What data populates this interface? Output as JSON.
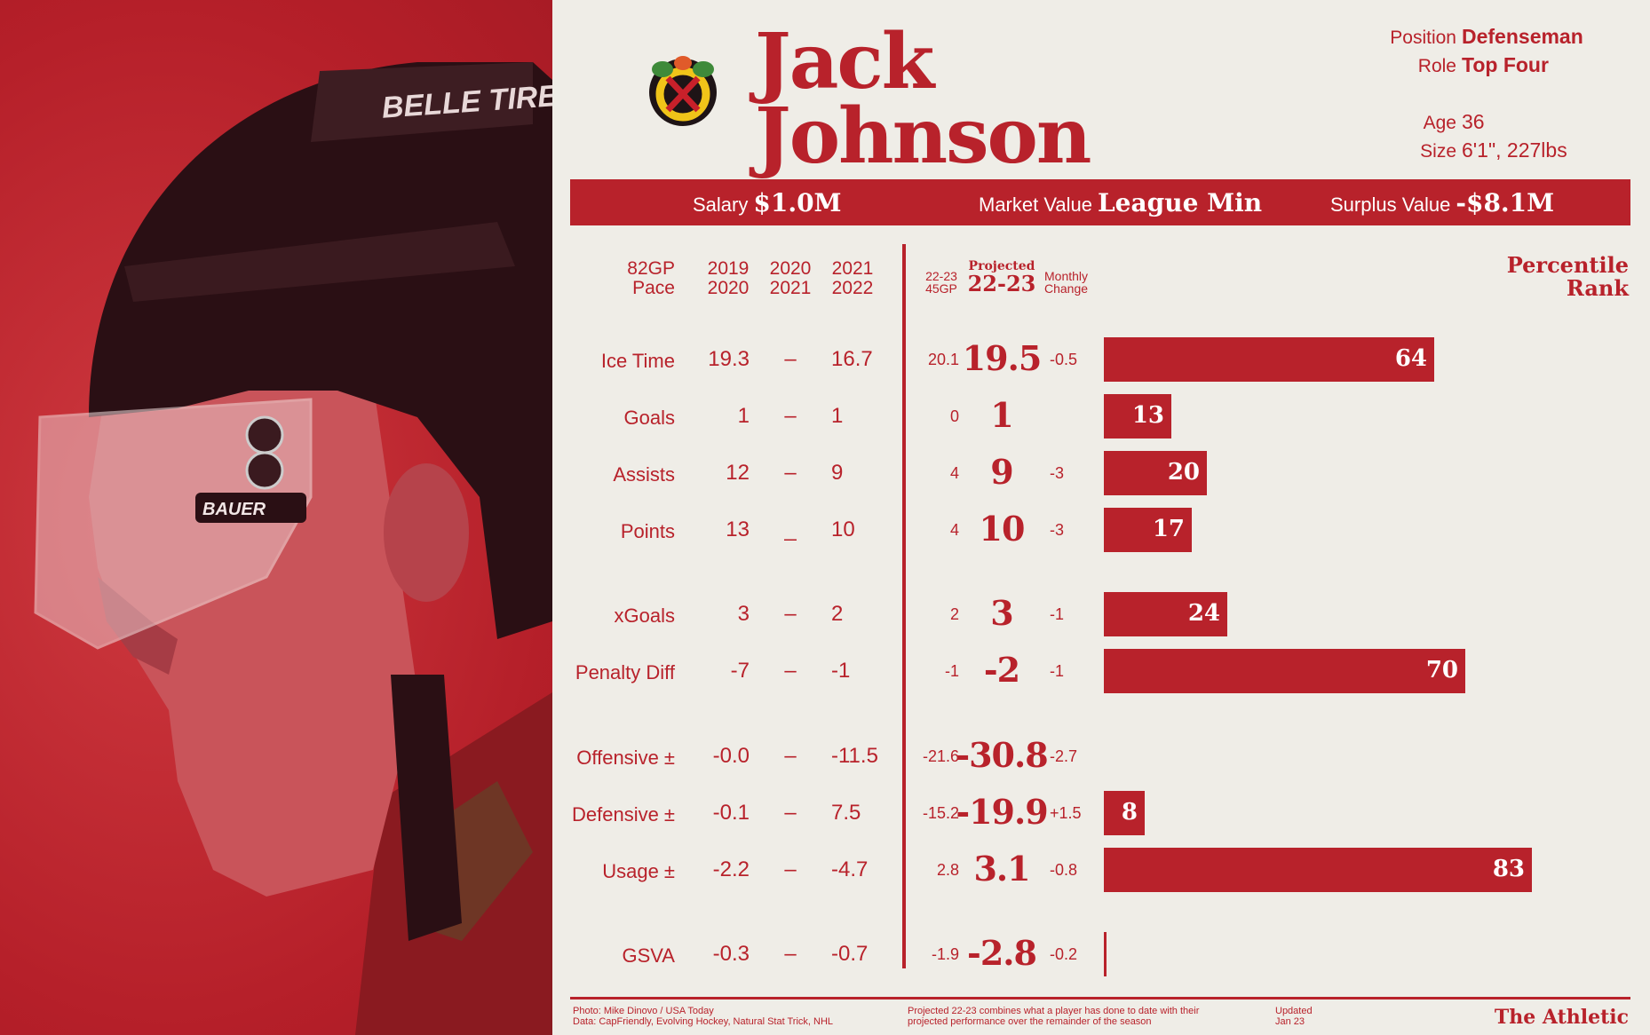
{
  "player": {
    "first": "Jack",
    "last": "Johnson"
  },
  "info": {
    "position_label": "Position",
    "position": "Defenseman",
    "role_label": "Role",
    "role": "Top Four",
    "age_label": "Age",
    "age": "36",
    "size_label": "Size",
    "size": "6'1\", 227lbs"
  },
  "banner": {
    "salary_label": "Salary",
    "salary": "$1.0M",
    "market_label": "Market Value",
    "market": "League Min",
    "surplus_label": "Surplus Value",
    "surplus": "-$8.1M"
  },
  "headers": {
    "pace": [
      "82GP",
      "Pace"
    ],
    "s1": [
      "2019",
      "2020"
    ],
    "s2": [
      "2020",
      "2021"
    ],
    "s3": [
      "2021",
      "2022"
    ],
    "cur": [
      "22-23",
      "45GP"
    ],
    "proj": [
      "Projected",
      "22-23"
    ],
    "chg": [
      "Monthly",
      "Change"
    ],
    "pct": [
      "Percentile",
      "Rank"
    ]
  },
  "colors": {
    "accent": "#b8222b",
    "background": "#efede7"
  },
  "chart_data": {
    "type": "bar",
    "title": "Percentile Rank",
    "categories": [
      "Ice Time",
      "Goals",
      "Assists",
      "Points",
      "xGoals",
      "Penalty Diff",
      "Offensive ±",
      "Defensive ±",
      "Usage ±",
      "GSVA"
    ],
    "values": [
      64,
      13,
      20,
      17,
      24,
      70,
      null,
      8,
      83,
      0
    ],
    "xlim": [
      0,
      100
    ]
  },
  "rows": [
    {
      "label": "Ice Time",
      "s1": "19.3",
      "s2": "–",
      "s3": "16.7",
      "cur": "20.1",
      "proj": "19.5",
      "chg": "-0.5",
      "pct": "64"
    },
    {
      "label": "Goals",
      "s1": "1",
      "s2": "–",
      "s3": "1",
      "cur": "0",
      "proj": "1",
      "chg": "",
      "pct": "13"
    },
    {
      "label": "Assists",
      "s1": "12",
      "s2": "–",
      "s3": "9",
      "cur": "4",
      "proj": "9",
      "chg": "-3",
      "pct": "20"
    },
    {
      "label": "Points",
      "s1": "13",
      "s2": "_",
      "s3": "10",
      "cur": "4",
      "proj": "10",
      "chg": "-3",
      "pct": "17"
    },
    {
      "label": "xGoals",
      "s1": "3",
      "s2": "–",
      "s3": "2",
      "cur": "2",
      "proj": "3",
      "chg": "-1",
      "pct": "24"
    },
    {
      "label": "Penalty Diff",
      "s1": "-7",
      "s2": "–",
      "s3": "-1",
      "cur": "-1",
      "proj": "-2",
      "chg": "-1",
      "pct": "70"
    },
    {
      "label": "Offensive ±",
      "s1": "-0.0",
      "s2": "–",
      "s3": "-11.5",
      "cur": "-21.6",
      "proj": "-30.8",
      "chg": "-2.7",
      "pct": ""
    },
    {
      "label": "Defensive ±",
      "s1": "-0.1",
      "s2": "–",
      "s3": "7.5",
      "cur": "-15.2",
      "proj": "-19.9",
      "chg": "+1.5",
      "pct": "8"
    },
    {
      "label": "Usage ±",
      "s1": "-2.2",
      "s2": "–",
      "s3": "-4.7",
      "cur": "2.8",
      "proj": "3.1",
      "chg": "-0.8",
      "pct": "83"
    },
    {
      "label": "GSVA",
      "s1": "-0.3",
      "s2": "–",
      "s3": "-0.7",
      "cur": "-1.9",
      "proj": "-2.8",
      "chg": "-0.2",
      "pct": ""
    }
  ],
  "footer": {
    "photo": "Photo: Mike Dinovo / USA Today",
    "data": "Data: CapFriendly, Evolving Hockey, Natural Stat Trick, NHL",
    "note1": "Projected 22-23 combines what a player has done to date with their",
    "note2": "projected performance over the remainder of the season",
    "updated": "Updated",
    "date": "Jan 23",
    "brand": "The Athletic"
  },
  "photo": {
    "helmet_brand": "BELLE TIRE",
    "visor_brand": "BAUER"
  }
}
